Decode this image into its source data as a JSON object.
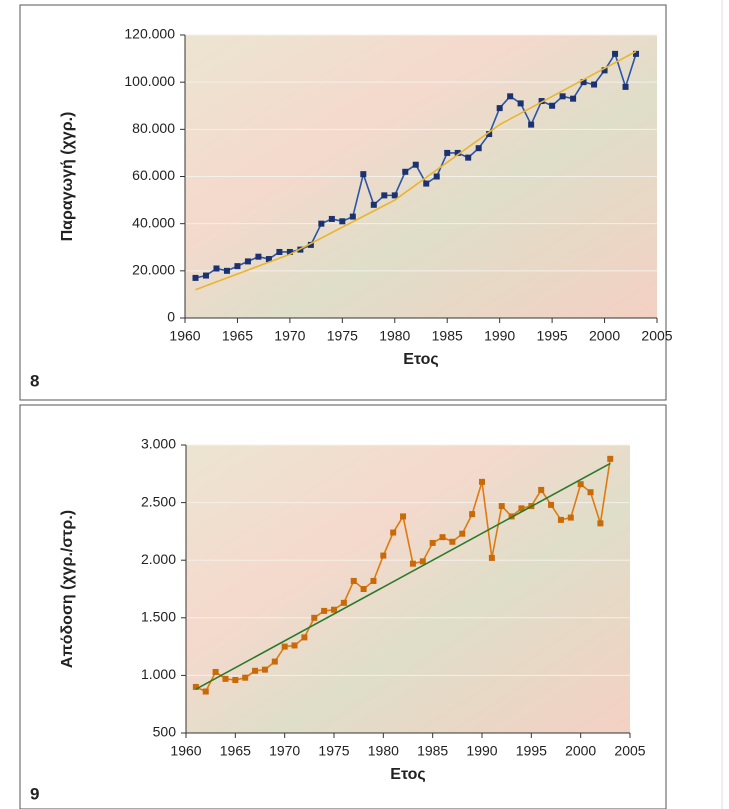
{
  "chart_data": [
    {
      "type": "line",
      "figure_label": "8",
      "xlabel": "Ετος",
      "ylabel": "Παραγωγή (χγρ.)",
      "xlim": [
        1960,
        2005
      ],
      "xticks": [
        1960,
        1965,
        1970,
        1975,
        1980,
        1985,
        1990,
        1995,
        2000,
        2005
      ],
      "ylim": [
        0,
        120000
      ],
      "yticks": [
        0,
        {
          "value": 20000,
          "label": "20.000"
        },
        {
          "value": 40000,
          "label": "40.000"
        },
        {
          "value": 60000,
          "label": "60.000"
        },
        {
          "value": 80000,
          "label": "80.000"
        },
        {
          "value": 100000,
          "label": "100.000"
        },
        {
          "value": 120000,
          "label": "120.000"
        }
      ],
      "grid": true,
      "series": [
        {
          "color": "#2a55a8",
          "marker_color": "#1c3270",
          "markers": true,
          "x": [
            1961,
            1962,
            1963,
            1964,
            1965,
            1966,
            1967,
            1968,
            1969,
            1970,
            1971,
            1972,
            1973,
            1974,
            1975,
            1976,
            1977,
            1978,
            1979,
            1980,
            1981,
            1982,
            1983,
            1984,
            1985,
            1986,
            1987,
            1988,
            1989,
            1990,
            1991,
            1992,
            1993,
            1994,
            1995,
            1996,
            1997,
            1998,
            1999,
            2000,
            2001,
            2002,
            2003
          ],
          "values": [
            17000,
            18000,
            21000,
            20000,
            22000,
            24000,
            26000,
            25000,
            28000,
            28000,
            29000,
            31000,
            40000,
            42000,
            41000,
            43000,
            61000,
            48000,
            52000,
            52000,
            62000,
            65000,
            57000,
            60000,
            70000,
            70000,
            68000,
            72000,
            78000,
            89000,
            94000,
            91000,
            82000,
            92000,
            90000,
            94000,
            93000,
            100000,
            99000,
            105000,
            112000,
            98000,
            112000
          ]
        },
        {
          "color": "#e8b530",
          "markers": false,
          "x": [
            1961,
            1970,
            1980,
            1990,
            2003
          ],
          "values": [
            12000,
            27000,
            50000,
            82000,
            113000
          ]
        }
      ]
    },
    {
      "type": "line",
      "figure_label": "9",
      "xlabel": "Ετος",
      "ylabel": "Απόδοση (χγρ./στρ.)",
      "xlim": [
        1960,
        2005
      ],
      "xticks": [
        1960,
        1965,
        1970,
        1975,
        1980,
        1985,
        1990,
        1995,
        2000,
        2005
      ],
      "ylim": [
        500,
        3000
      ],
      "yticks": [
        500,
        {
          "value": 1000,
          "label": "1.000"
        },
        {
          "value": 1500,
          "label": "1.500"
        },
        {
          "value": 2000,
          "label": "2.000"
        },
        {
          "value": 2500,
          "label": "2.500"
        },
        {
          "value": 3000,
          "label": "3.000"
        }
      ],
      "grid": true,
      "series": [
        {
          "color": "#e07a10",
          "marker_color": "#c86a08",
          "markers": true,
          "x": [
            1961,
            1962,
            1963,
            1964,
            1965,
            1966,
            1967,
            1968,
            1969,
            1970,
            1971,
            1972,
            1973,
            1974,
            1975,
            1976,
            1977,
            1978,
            1979,
            1980,
            1981,
            1982,
            1983,
            1984,
            1985,
            1986,
            1987,
            1988,
            1989,
            1990,
            1991,
            1992,
            1993,
            1994,
            1995,
            1996,
            1997,
            1998,
            1999,
            2000,
            2001,
            2002,
            2003
          ],
          "values": [
            900,
            860,
            1030,
            970,
            960,
            980,
            1040,
            1050,
            1120,
            1250,
            1260,
            1330,
            1500,
            1560,
            1570,
            1630,
            1820,
            1750,
            1820,
            2040,
            2240,
            2380,
            1970,
            1990,
            2150,
            2200,
            2160,
            2230,
            2400,
            2680,
            2020,
            2470,
            2380,
            2450,
            2470,
            2610,
            2480,
            2350,
            2370,
            2660,
            2590,
            2320,
            2880
          ]
        },
        {
          "color": "#2a7a2a",
          "markers": false,
          "x": [
            1961,
            2003
          ],
          "values": [
            880,
            2840
          ]
        }
      ]
    }
  ]
}
